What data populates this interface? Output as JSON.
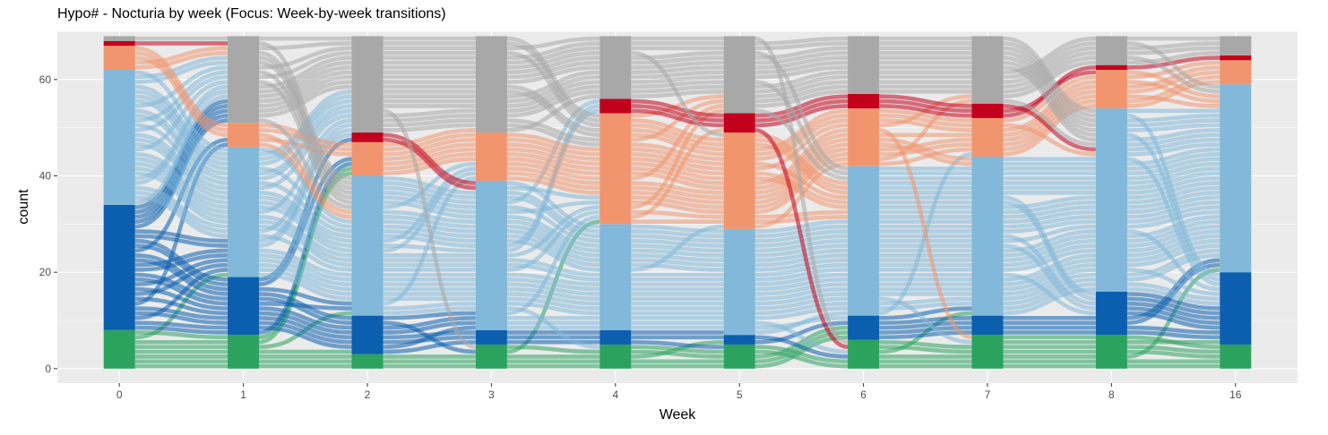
{
  "chart_data": {
    "type": "alluvial",
    "title": "Hypo# - Nocturia by week (Focus: Week-by-week transitions)",
    "xlabel": "Week",
    "ylabel": "count",
    "ylim": [
      -3,
      70
    ],
    "yticks": [
      0,
      20,
      40,
      60
    ],
    "grid": true,
    "legend": "none",
    "categories": [
      "0",
      "1",
      "2",
      "3",
      "4",
      "5",
      "6",
      "7",
      "8",
      "16"
    ],
    "total": 69,
    "series": [
      {
        "color": "#2ca25f",
        "values": [
          8,
          7,
          3,
          5,
          5,
          5,
          6,
          7,
          7,
          5
        ]
      },
      {
        "color": "#0b5fae",
        "values": [
          26,
          12,
          8,
          3,
          3,
          2,
          5,
          4,
          9,
          15
        ]
      },
      {
        "color": "#82b8d9",
        "values": [
          28,
          27,
          29,
          31,
          22,
          22,
          31,
          33,
          38,
          39
        ]
      },
      {
        "color": "#f1956f",
        "values": [
          5,
          5,
          7,
          10,
          23,
          20,
          12,
          8,
          8,
          5
        ]
      },
      {
        "color": "#c2001c",
        "values": [
          1,
          0,
          2,
          0,
          3,
          4,
          3,
          3,
          1,
          1
        ]
      },
      {
        "color": "#a8a8a8",
        "values": [
          1,
          18,
          20,
          20,
          13,
          16,
          12,
          14,
          6,
          4
        ]
      }
    ]
  }
}
